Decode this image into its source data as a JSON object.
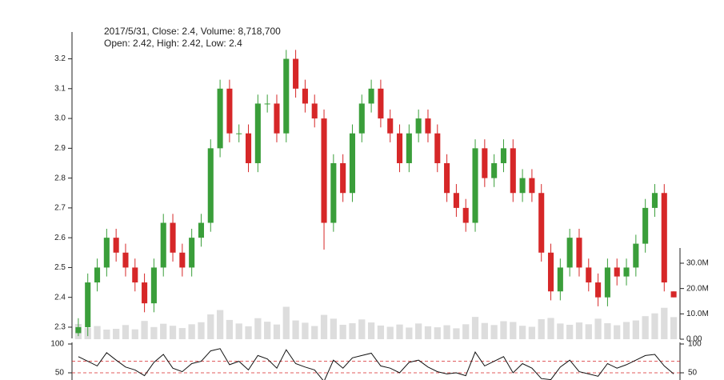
{
  "chart_data": [
    {
      "type": "candlestick",
      "annotations": [
        "2017/5/31, Close: 2.4, Volume: 8,718,700",
        "Open: 2.42, High: 2.42, Low: 2.4"
      ],
      "up_color": "#3a9e3a",
      "down_color": "#d62728",
      "ylim": [
        2.265,
        3.29
      ],
      "yticks": [
        2.3,
        2.4,
        2.5,
        2.6,
        2.7,
        2.8,
        2.9,
        {
          "value": 3,
          "label": "3.0"
        },
        3.1,
        3.2
      ],
      "open": [
        2.28,
        2.3,
        2.45,
        2.5,
        2.6,
        2.55,
        2.5,
        2.45,
        2.38,
        2.5,
        2.65,
        2.55,
        2.5,
        2.6,
        2.65,
        2.9,
        3.1,
        2.95,
        2.95,
        2.85,
        3.05,
        3.05,
        2.95,
        3.2,
        3.1,
        3.05,
        3.0,
        2.65,
        2.85,
        2.75,
        2.95,
        3.05,
        3.1,
        3.0,
        2.95,
        2.85,
        2.95,
        3.0,
        2.95,
        2.85,
        2.75,
        2.7,
        2.65,
        2.9,
        2.8,
        2.85,
        2.9,
        2.75,
        2.8,
        2.75,
        2.55,
        2.42,
        2.5,
        2.6,
        2.5,
        2.45,
        2.4,
        2.5,
        2.47,
        2.5,
        2.58,
        2.7,
        2.75,
        2.42
      ],
      "high": [
        2.33,
        2.48,
        2.53,
        2.63,
        2.63,
        2.58,
        2.53,
        2.48,
        2.53,
        2.68,
        2.68,
        2.58,
        2.63,
        2.68,
        2.93,
        3.13,
        3.13,
        2.98,
        2.98,
        3.08,
        3.08,
        3.08,
        3.23,
        3.23,
        3.13,
        3.08,
        3.03,
        2.88,
        2.88,
        2.98,
        3.08,
        3.13,
        3.13,
        3.03,
        2.98,
        2.98,
        3.03,
        3.03,
        2.98,
        2.88,
        2.78,
        2.73,
        2.93,
        2.93,
        2.88,
        2.93,
        2.93,
        2.83,
        2.83,
        2.78,
        2.58,
        2.53,
        2.63,
        2.63,
        2.53,
        2.48,
        2.53,
        2.53,
        2.53,
        2.61,
        2.73,
        2.78,
        2.78,
        2.42
      ],
      "low": [
        2.27,
        2.27,
        2.42,
        2.47,
        2.52,
        2.47,
        2.42,
        2.35,
        2.35,
        2.47,
        2.52,
        2.47,
        2.47,
        2.57,
        2.62,
        2.87,
        2.92,
        2.92,
        2.82,
        2.82,
        3.02,
        2.92,
        2.92,
        3.07,
        3.02,
        2.97,
        2.56,
        2.62,
        2.72,
        2.72,
        2.92,
        3.02,
        2.97,
        2.92,
        2.82,
        2.82,
        2.92,
        2.92,
        2.82,
        2.72,
        2.67,
        2.62,
        2.62,
        2.77,
        2.77,
        2.82,
        2.72,
        2.72,
        2.72,
        2.52,
        2.39,
        2.39,
        2.47,
        2.47,
        2.42,
        2.37,
        2.37,
        2.44,
        2.44,
        2.47,
        2.55,
        2.67,
        2.42,
        2.4
      ],
      "close": [
        2.3,
        2.45,
        2.5,
        2.6,
        2.55,
        2.5,
        2.45,
        2.38,
        2.5,
        2.65,
        2.55,
        2.5,
        2.6,
        2.65,
        2.9,
        3.1,
        2.95,
        2.95,
        2.85,
        3.05,
        3.05,
        2.95,
        3.2,
        3.1,
        3.05,
        3.0,
        2.65,
        2.85,
        2.75,
        2.95,
        3.05,
        3.1,
        3.0,
        2.95,
        2.85,
        2.95,
        3.0,
        2.95,
        2.85,
        2.75,
        2.7,
        2.65,
        2.9,
        2.8,
        2.85,
        2.9,
        2.75,
        2.8,
        2.75,
        2.55,
        2.42,
        2.5,
        2.6,
        2.5,
        2.45,
        2.4,
        2.5,
        2.47,
        2.5,
        2.58,
        2.7,
        2.75,
        2.45,
        2.4
      ]
    },
    {
      "type": "bar",
      "color": "#dddddd",
      "ylim": [
        0,
        36000000
      ],
      "yticks": [
        {
          "value": 0,
          "label": "0.00"
        },
        {
          "value": 10000000,
          "label": "10.0M"
        },
        {
          "value": 20000000,
          "label": "20.0M"
        },
        {
          "value": 30000000,
          "label": "30.0M"
        }
      ],
      "values": [
        6000000,
        4500000,
        5200000,
        3800000,
        4100000,
        5600000,
        3900000,
        7200000,
        4800000,
        6100000,
        5300000,
        4400000,
        5900000,
        6700000,
        9800000,
        11500000,
        7600000,
        6200000,
        5100000,
        8300000,
        6900000,
        5800000,
        12800000,
        7400000,
        6500000,
        5200000,
        9600000,
        8100000,
        5700000,
        6300000,
        7800000,
        6600000,
        5400000,
        4900000,
        5800000,
        4600000,
        6200000,
        5100000,
        4700000,
        5500000,
        4300000,
        5900000,
        8800000,
        6400000,
        5600000,
        7100000,
        6800000,
        5300000,
        4900000,
        7900000,
        8400000,
        6200000,
        5700000,
        6600000,
        5900000,
        8100000,
        6300000,
        5500000,
        6800000,
        7400000,
        9100000,
        10200000,
        12400000,
        8718700
      ]
    },
    {
      "type": "line",
      "color": "#111111",
      "ref_color": "#d62728",
      "ylim": [
        0,
        100
      ],
      "yticks": [
        50,
        100
      ],
      "ref_lines": [
        70,
        50
      ],
      "values": [
        78,
        70,
        62,
        85,
        72,
        60,
        55,
        45,
        68,
        82,
        58,
        52,
        66,
        70,
        88,
        92,
        64,
        70,
        55,
        80,
        74,
        58,
        90,
        66,
        60,
        55,
        35,
        72,
        58,
        76,
        80,
        84,
        62,
        58,
        50,
        68,
        72,
        60,
        52,
        48,
        50,
        45,
        86,
        62,
        70,
        78,
        50,
        66,
        58,
        40,
        38,
        60,
        72,
        52,
        48,
        44,
        66,
        58,
        64,
        72,
        80,
        82,
        62,
        48
      ]
    }
  ]
}
